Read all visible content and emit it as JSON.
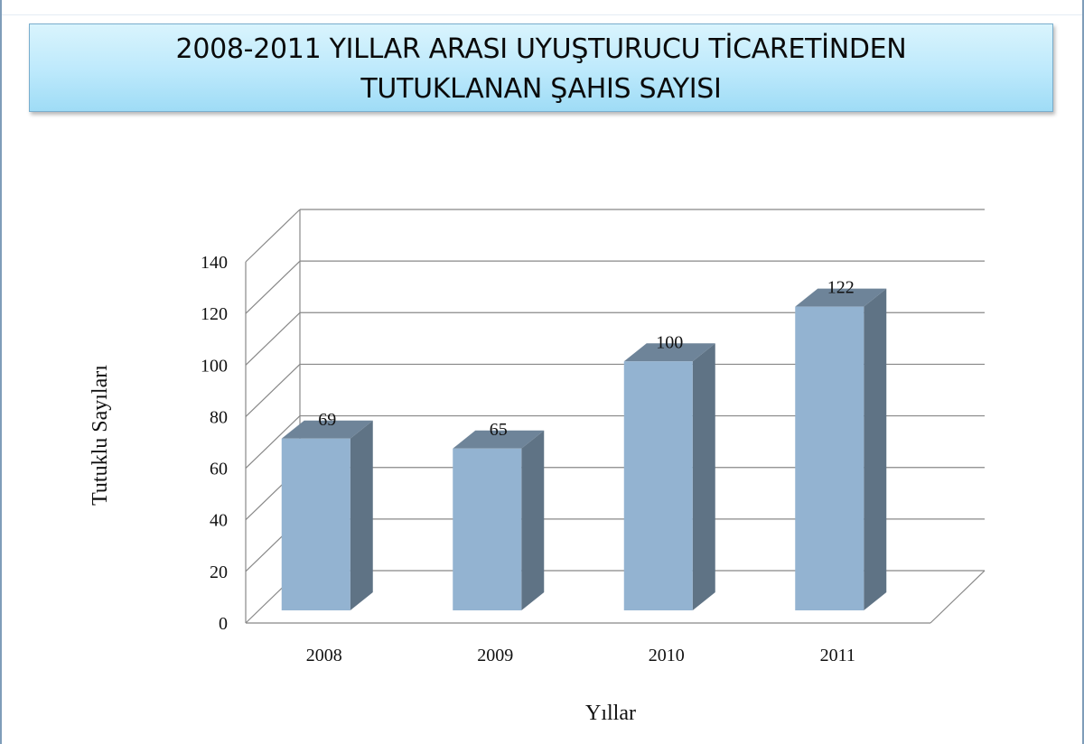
{
  "chart_data": {
    "type": "bar",
    "title": [
      "2008-2011 YILLAR ARASI UYUŞTURUCU TİCARETİNDEN",
      "TUTUKLANAN ŞAHIS SAYISI"
    ],
    "categories": [
      "2008",
      "2009",
      "2010",
      "2011"
    ],
    "values": [
      69,
      65,
      100,
      122
    ],
    "data_labels": [
      "69",
      "65",
      "100",
      "122"
    ],
    "ylabel": "Tutuklu Sayıları",
    "xlabel": "Yıllar",
    "ylim": [
      0,
      140
    ],
    "yticks": [
      0,
      20,
      40,
      60,
      80,
      100,
      120,
      140
    ],
    "grid": true,
    "style": "3d-column",
    "colors": {
      "bar_front": "#93b3d1",
      "bar_side": "#5f7385",
      "bar_top": "#6e8499",
      "grid": "#888888"
    }
  }
}
